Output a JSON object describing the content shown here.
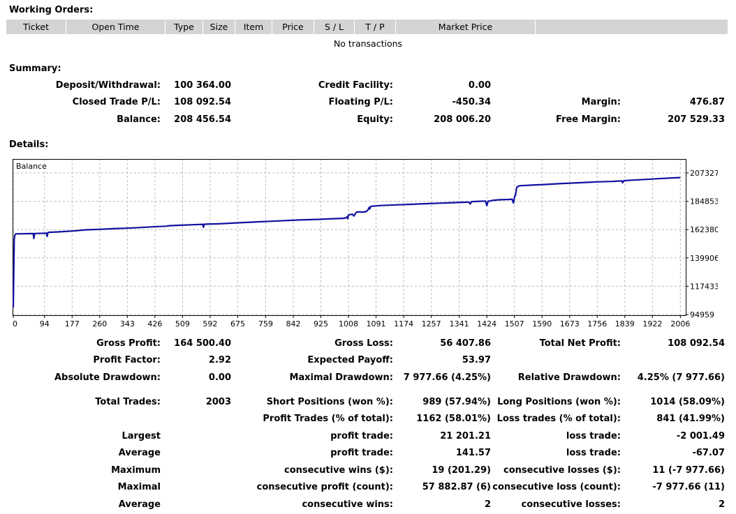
{
  "working_orders": {
    "title": "Working Orders:",
    "columns": [
      "Ticket",
      "Open Time",
      "Type",
      "Size",
      "Item",
      "Price",
      "S / L",
      "T / P",
      "Market Price",
      ""
    ],
    "empty_text": "No transactions"
  },
  "summary": {
    "title": "Summary:",
    "rows": [
      [
        {
          "l": "Deposit/Withdrawal:",
          "v": "100 364.00"
        },
        {
          "l": "Credit Facility:",
          "v": "0.00"
        },
        {
          "l": "",
          "v": ""
        }
      ],
      [
        {
          "l": "Closed Trade P/L:",
          "v": "108 092.54"
        },
        {
          "l": "Floating P/L:",
          "v": "-450.34"
        },
        {
          "l": "Margin:",
          "v": "476.87"
        }
      ],
      [
        {
          "l": "Balance:",
          "v": "208 456.54"
        },
        {
          "l": "Equity:",
          "v": "208 006.20"
        },
        {
          "l": "Free Margin:",
          "v": "207 529.33"
        }
      ]
    ]
  },
  "details": {
    "title": "Details:",
    "rows": [
      [
        {
          "l": "Gross Profit:",
          "v": "164 500.40"
        },
        {
          "l": "Gross Loss:",
          "v": "56 407.86"
        },
        {
          "l": "Total Net Profit:",
          "v": "108 092.54"
        }
      ],
      [
        {
          "l": "Profit Factor:",
          "v": "2.92"
        },
        {
          "l": "Expected Payoff:",
          "v": "53.97"
        },
        {
          "l": "",
          "v": ""
        }
      ],
      [
        {
          "l": "Absolute Drawdown:",
          "v": "0.00"
        },
        {
          "l": "Maximal Drawdown:",
          "v": "7 977.66 (4.25%)"
        },
        {
          "l": "Relative Drawdown:",
          "v": "4.25% (7 977.66)"
        }
      ],
      [
        {
          "l": "Total Trades:",
          "v": "2003"
        },
        {
          "l": "Short Positions (won %):",
          "v": "989 (57.94%)"
        },
        {
          "l": "Long Positions (won %):",
          "v": "1014 (58.09%)"
        }
      ],
      [
        {
          "l": "",
          "v": ""
        },
        {
          "l": "Profit Trades (% of total):",
          "v": "1162 (58.01%)"
        },
        {
          "l": "Loss trades (% of total):",
          "v": "841 (41.99%)"
        }
      ],
      [
        {
          "l": "Largest",
          "v": ""
        },
        {
          "l": "profit trade:",
          "v": "21 201.21"
        },
        {
          "l": "loss trade:",
          "v": "-2 001.49"
        }
      ],
      [
        {
          "l": "Average",
          "v": ""
        },
        {
          "l": "profit trade:",
          "v": "141.57"
        },
        {
          "l": "loss trade:",
          "v": "-67.07"
        }
      ],
      [
        {
          "l": "Maximum",
          "v": ""
        },
        {
          "l": "consecutive wins ($):",
          "v": "19 (201.29)"
        },
        {
          "l": "consecutive losses ($):",
          "v": "11 (-7 977.66)"
        }
      ],
      [
        {
          "l": "Maximal",
          "v": ""
        },
        {
          "l": "consecutive profit (count):",
          "v": "57 882.87 (6)"
        },
        {
          "l": "consecutive loss (count):",
          "v": "-7 977.66 (11)"
        }
      ],
      [
        {
          "l": "Average",
          "v": ""
        },
        {
          "l": "consecutive wins:",
          "v": "2"
        },
        {
          "l": "consecutive losses:",
          "v": "2"
        }
      ]
    ]
  },
  "chart_data": {
    "type": "line",
    "title": "Balance",
    "xlabel": "",
    "ylabel": "",
    "x_ticks": [
      0,
      94,
      177,
      260,
      343,
      426,
      509,
      592,
      675,
      759,
      842,
      925,
      1008,
      1091,
      1174,
      1257,
      1341,
      1424,
      1507,
      1590,
      1673,
      1756,
      1839,
      1922,
      2006
    ],
    "y_ticks": [
      94959,
      117433,
      139906,
      162380,
      184853,
      207327
    ],
    "xlim": [
      0,
      2020
    ],
    "ylim": [
      94959,
      207327
    ],
    "grid": true,
    "line_color": "#1010a0",
    "series": [
      {
        "name": "Balance",
        "x": [
          0,
          1,
          3,
          5,
          8,
          60,
          62,
          64,
          66,
          100,
          102,
          104,
          106,
          140,
          180,
          220,
          260,
          300,
          340,
          380,
          420,
          460,
          470,
          500,
          560,
          570,
          572,
          574,
          580,
          620,
          680,
          740,
          800,
          860,
          920,
          960,
          990,
          1000,
          1004,
          1006,
          1008,
          1020,
          1024,
          1028,
          1030,
          1034,
          1040,
          1050,
          1060,
          1064,
          1068,
          1070,
          1072,
          1074,
          1080,
          1100,
          1150,
          1200,
          1250,
          1300,
          1350,
          1370,
          1374,
          1378,
          1390,
          1420,
          1424,
          1428,
          1430,
          1434,
          1440,
          1460,
          1490,
          1500,
          1504,
          1508,
          1510,
          1514,
          1518,
          1524,
          1560,
          1600,
          1640,
          1680,
          1720,
          1760,
          1800,
          1820,
          1830,
          1832,
          1836,
          1860,
          1900,
          1940,
          1980,
          2006
        ],
        "y": [
          100500,
          120500,
          155000,
          158000,
          159000,
          159200,
          155400,
          159200,
          159300,
          159500,
          157000,
          160000,
          160200,
          160600,
          161300,
          162200,
          162600,
          163100,
          163500,
          164000,
          164600,
          165100,
          165500,
          165800,
          166500,
          166600,
          164200,
          166600,
          166700,
          167000,
          167800,
          168600,
          169300,
          170000,
          170500,
          171000,
          171300,
          171600,
          172500,
          171000,
          174000,
          174600,
          173200,
          174600,
          175600,
          176400,
          176400,
          176300,
          176600,
          177200,
          178600,
          180000,
          178700,
          180600,
          181000,
          181400,
          182000,
          182500,
          183000,
          183500,
          184000,
          184200,
          182700,
          184600,
          184700,
          185000,
          181400,
          185000,
          185000,
          185000,
          185500,
          186000,
          186300,
          186500,
          183500,
          189000,
          189300,
          196000,
          196700,
          197200,
          197700,
          198200,
          198800,
          199300,
          199800,
          200300,
          200600,
          200900,
          201000,
          199600,
          201200,
          201600,
          202200,
          202800,
          203400,
          203700
        ]
      }
    ]
  }
}
